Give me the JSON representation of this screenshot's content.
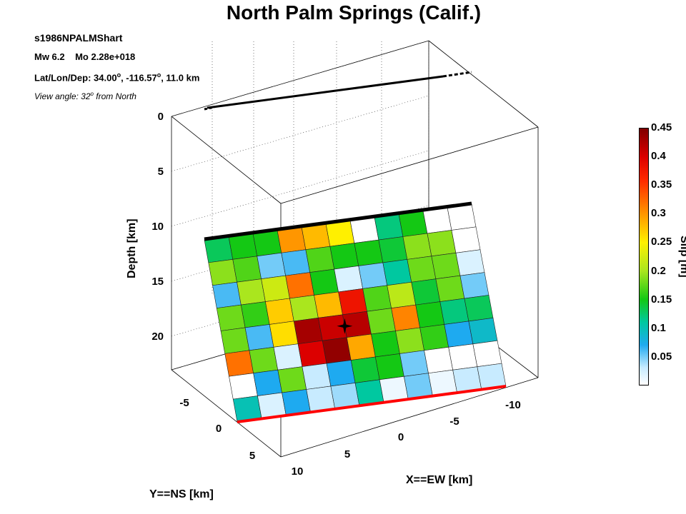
{
  "title": "North Palm Springs (Calif.)",
  "info": {
    "event_id": "s1986NPALMShart",
    "mw": "Mw 6.2",
    "mo": "Mo 2.28e+018",
    "latlondep_prefix": "Lat/Lon/Dep: 34.00",
    "deg_symbol": "o",
    "lon": ", -116.57",
    "dep_suffix": ", 11.0 km",
    "view_prefix": "View angle:  32",
    "view_suffix": " from North"
  },
  "colormap": "jet-like (white at 0 to dark red at 0.45)",
  "chart_data": {
    "type": "heatmap",
    "title": "North Palm Springs (Calif.)",
    "xlabel": "X==EW [km]",
    "ylabel": "Y==NS [km]",
    "zlabel": "Depth [km]",
    "z_ticks": [
      "0",
      "5",
      "10",
      "15",
      "20"
    ],
    "x_ticks": [
      "10",
      "5",
      "0",
      "-5",
      "-10"
    ],
    "y_ticks": [
      "-5",
      "0",
      "5"
    ],
    "colorbar": {
      "label": "Slip [m]",
      "range": [
        0,
        0.45
      ],
      "ticks": [
        "0.05",
        "0.1",
        "0.15",
        "0.2",
        "0.25",
        "0.3",
        "0.35",
        "0.4",
        "0.45"
      ]
    },
    "slip_grid_rows_top_to_bottom": [
      [
        0.13,
        0.15,
        0.15,
        0.3,
        0.28,
        0.25,
        0.0,
        0.12,
        0.15,
        0.0,
        0.0
      ],
      [
        0.19,
        0.17,
        0.05,
        0.06,
        0.17,
        0.15,
        0.15,
        0.14,
        0.19,
        0.19,
        0.0
      ],
      [
        0.06,
        0.2,
        0.22,
        0.32,
        0.15,
        0.02,
        0.05,
        0.11,
        0.18,
        0.18,
        0.02
      ],
      [
        0.18,
        0.16,
        0.27,
        0.2,
        0.28,
        0.38,
        0.17,
        0.21,
        0.14,
        0.18,
        0.05
      ],
      [
        0.18,
        0.06,
        0.26,
        0.43,
        0.41,
        0.42,
        0.18,
        0.31,
        0.15,
        0.12,
        0.13
      ],
      [
        0.32,
        0.18,
        0.02,
        0.4,
        0.44,
        0.29,
        0.15,
        0.19,
        0.16,
        0.07,
        0.09
      ],
      [
        0.0,
        0.07,
        0.18,
        0.03,
        0.07,
        0.14,
        0.15,
        0.05,
        0.0,
        0.0,
        0.0
      ],
      [
        0.1,
        0.02,
        0.07,
        0.03,
        0.04,
        0.11,
        0.01,
        0.05,
        0.01,
        0.03,
        0.03
      ]
    ],
    "hypocenter": {
      "row": 4.5,
      "col": 5.0,
      "marker": "star"
    },
    "surface_trace_color": "#000000",
    "bottom_edge_color": "#ff0000"
  }
}
